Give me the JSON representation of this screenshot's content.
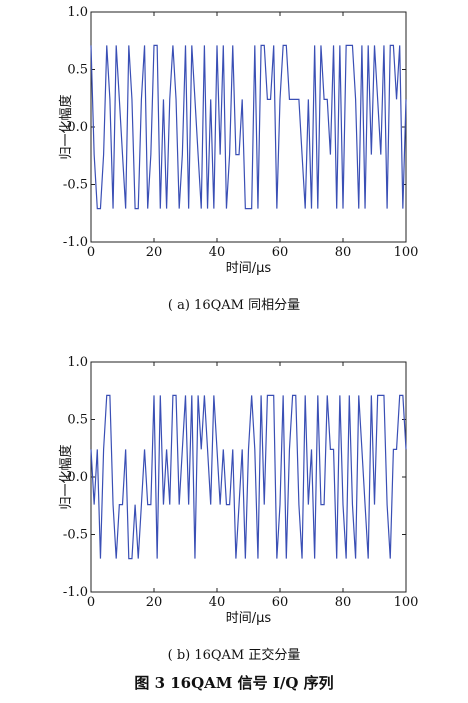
{
  "chart_data": [
    {
      "type": "line",
      "caption": "( a) 16QAM 同相分量",
      "xlabel": "时间/μs",
      "ylabel": "归一化幅度",
      "xlim": [
        0,
        100
      ],
      "ylim": [
        -1.0,
        1.0
      ],
      "xticks": [
        "0",
        "20",
        "40",
        "60",
        "80",
        "100"
      ],
      "yticks": [
        "-1.0",
        "-0.5",
        "0.0",
        "0.5",
        "1.0"
      ],
      "grid": false,
      "color": "#3a4fb5",
      "x": [
        0,
        1,
        2,
        3,
        4,
        5,
        6,
        7,
        8,
        9,
        10,
        11,
        12,
        13,
        14,
        15,
        16,
        17,
        18,
        19,
        20,
        21,
        22,
        23,
        24,
        25,
        26,
        27,
        28,
        29,
        30,
        31,
        32,
        33,
        34,
        35,
        36,
        37,
        38,
        39,
        40,
        41,
        42,
        43,
        44,
        45,
        46,
        47,
        48,
        49,
        50,
        51,
        52,
        53,
        54,
        55,
        56,
        57,
        58,
        59,
        60,
        61,
        62,
        63,
        64,
        65,
        66,
        67,
        68,
        69,
        70,
        71,
        72,
        73,
        74,
        75,
        76,
        77,
        78,
        79,
        80,
        81,
        82,
        83,
        84,
        85,
        86,
        87,
        88,
        89,
        90,
        91,
        92,
        93,
        94,
        95,
        96,
        97,
        98,
        99,
        100
      ],
      "y": [
        0.71,
        -0.24,
        -0.71,
        -0.71,
        -0.24,
        0.71,
        0.24,
        -0.71,
        0.71,
        0.24,
        -0.24,
        -0.71,
        0.71,
        0.24,
        -0.71,
        -0.71,
        0.24,
        0.71,
        -0.71,
        -0.24,
        0.71,
        0.71,
        -0.71,
        0.24,
        -0.71,
        0.24,
        0.71,
        0.24,
        -0.71,
        -0.24,
        0.71,
        -0.71,
        0.71,
        0.24,
        -0.24,
        -0.71,
        0.71,
        -0.71,
        0.24,
        -0.71,
        0.71,
        -0.24,
        0.71,
        -0.71,
        -0.24,
        0.71,
        -0.24,
        -0.24,
        0.24,
        -0.71,
        -0.71,
        -0.71,
        0.71,
        -0.71,
        0.71,
        0.71,
        0.24,
        0.24,
        0.71,
        -0.71,
        0.24,
        0.71,
        0.71,
        0.24,
        0.24,
        0.24,
        0.24,
        -0.24,
        -0.71,
        0.24,
        -0.71,
        0.71,
        -0.71,
        0.71,
        0.24,
        0.24,
        -0.24,
        0.71,
        -0.71,
        0.71,
        -0.71,
        0.71,
        0.71,
        0.71,
        0.24,
        -0.71,
        0.71,
        -0.71,
        0.71,
        -0.24,
        0.71,
        0.24,
        -0.24,
        0.71,
        -0.71,
        0.71,
        0.71,
        0.24,
        0.71,
        -0.71,
        0.24
      ]
    },
    {
      "type": "line",
      "caption": "( b) 16QAM 正交分量",
      "xlabel": "时间/μs",
      "ylabel": "归一化幅度",
      "xlim": [
        0,
        100
      ],
      "ylim": [
        -1.0,
        1.0
      ],
      "xticks": [
        "0",
        "20",
        "40",
        "60",
        "80",
        "100"
      ],
      "yticks": [
        "-1.0",
        "-0.5",
        "0.0",
        "0.5",
        "1.0"
      ],
      "grid": false,
      "color": "#3a4fb5",
      "x": [
        0,
        1,
        2,
        3,
        4,
        5,
        6,
        7,
        8,
        9,
        10,
        11,
        12,
        13,
        14,
        15,
        16,
        17,
        18,
        19,
        20,
        21,
        22,
        23,
        24,
        25,
        26,
        27,
        28,
        29,
        30,
        31,
        32,
        33,
        34,
        35,
        36,
        37,
        38,
        39,
        40,
        41,
        42,
        43,
        44,
        45,
        46,
        47,
        48,
        49,
        50,
        51,
        52,
        53,
        54,
        55,
        56,
        57,
        58,
        59,
        60,
        61,
        62,
        63,
        64,
        65,
        66,
        67,
        68,
        69,
        70,
        71,
        72,
        73,
        74,
        75,
        76,
        77,
        78,
        79,
        80,
        81,
        82,
        83,
        84,
        85,
        86,
        87,
        88,
        89,
        90,
        91,
        92,
        93,
        94,
        95,
        96,
        97,
        98,
        99,
        100
      ],
      "y": [
        0.24,
        -0.24,
        0.24,
        -0.71,
        0.24,
        0.71,
        0.71,
        -0.24,
        -0.71,
        -0.24,
        -0.24,
        0.24,
        -0.71,
        -0.71,
        -0.24,
        -0.71,
        -0.24,
        0.24,
        -0.24,
        -0.24,
        0.71,
        -0.71,
        0.71,
        -0.24,
        0.24,
        -0.24,
        0.71,
        0.71,
        -0.24,
        0.24,
        0.71,
        -0.24,
        0.71,
        -0.71,
        0.71,
        0.24,
        0.71,
        0.24,
        -0.24,
        0.71,
        0.24,
        -0.24,
        0.24,
        -0.24,
        -0.24,
        0.24,
        -0.71,
        -0.24,
        0.24,
        -0.71,
        0.24,
        0.71,
        0.24,
        -0.71,
        0.71,
        -0.24,
        0.71,
        0.71,
        0.71,
        -0.71,
        -0.24,
        0.71,
        -0.71,
        0.24,
        0.71,
        0.71,
        -0.24,
        -0.71,
        0.71,
        -0.24,
        0.24,
        -0.71,
        0.71,
        -0.24,
        -0.24,
        0.71,
        0.24,
        0.24,
        -0.71,
        0.71,
        -0.24,
        -0.71,
        0.71,
        -0.24,
        -0.71,
        0.71,
        0.24,
        -0.24,
        -0.71,
        0.71,
        -0.24,
        0.71,
        0.71,
        0.71,
        -0.24,
        -0.71,
        0.24,
        0.24,
        0.71,
        0.71,
        0.24
      ]
    }
  ],
  "figure_caption": "图 3   16QAM 信号 I/Q 序列"
}
